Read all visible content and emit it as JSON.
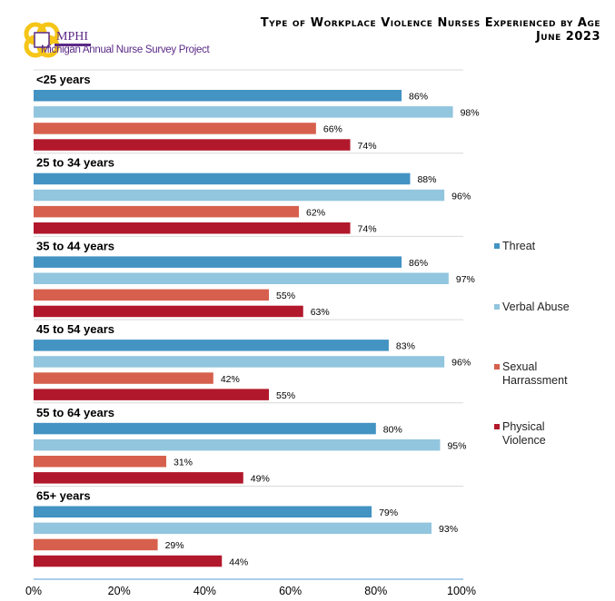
{
  "logo": {
    "name": "MPHI",
    "subtitle": "Michigan Annual Nurse Survey Project"
  },
  "chart_data": {
    "type": "bar",
    "orientation": "horizontal",
    "title": "Type of Workplace Violence Nurses Experienced by Age",
    "subtitle": "June 2023",
    "categories": [
      "<25 years",
      "25 to 34 years",
      "35 to 44 years",
      "45 to 54 years",
      "55 to 64 years",
      "65+ years"
    ],
    "series": [
      {
        "name": "Threat",
        "color": "#4393c3",
        "values": [
          86,
          88,
          86,
          83,
          80,
          79
        ]
      },
      {
        "name": "Verbal Abuse",
        "color": "#92c5de",
        "values": [
          98,
          96,
          97,
          96,
          95,
          93
        ]
      },
      {
        "name": "Sexual Harrassment",
        "color": "#d6604d",
        "values": [
          66,
          62,
          55,
          42,
          31,
          29
        ]
      },
      {
        "name": "Physical Violence",
        "color": "#b2182b",
        "values": [
          74,
          74,
          63,
          55,
          49,
          44
        ]
      }
    ],
    "xlim": [
      0,
      100
    ],
    "xticks": [
      "0%",
      "20%",
      "40%",
      "60%",
      "80%",
      "100%"
    ],
    "value_suffix": "%",
    "legend_position": "right",
    "grid": false
  }
}
